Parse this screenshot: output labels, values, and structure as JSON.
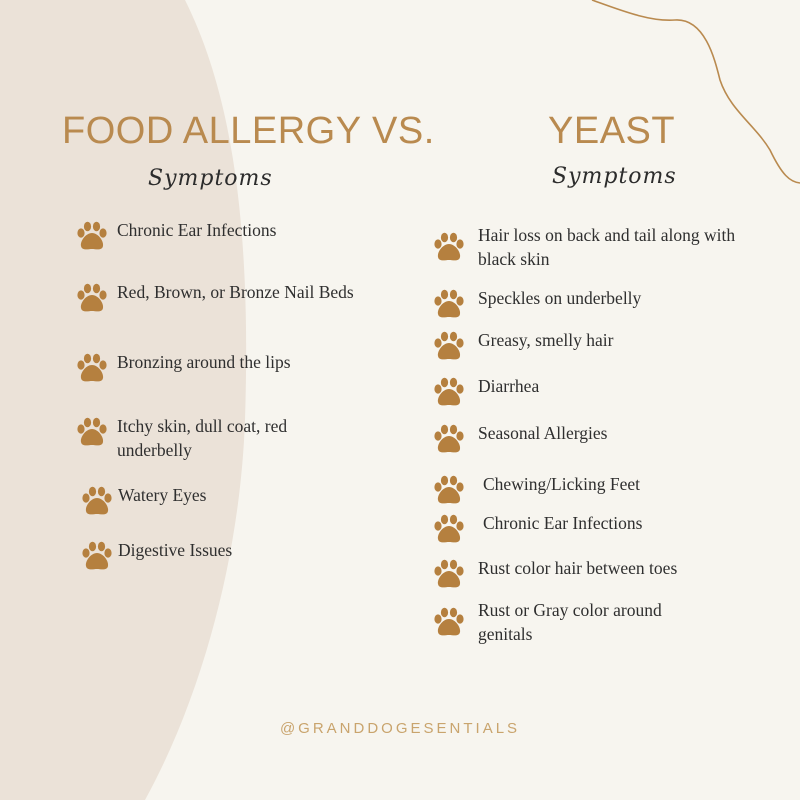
{
  "colors": {
    "background": "#f7f5ef",
    "left_shape": "#ebe2d8",
    "accent": "#b98a4f",
    "paw": "#b5803f",
    "text": "#2f2f2f",
    "footer": "#c9a46d"
  },
  "left": {
    "title": "FOOD ALLERGY",
    "subtitle": "Symptoms",
    "items": [
      {
        "text": "Chronic Ear Infections",
        "icon": "paw-icon"
      },
      {
        "text": "Red, Brown, or Bronze Nail Beds",
        "icon": "paw-icon"
      },
      {
        "text": "Bronzing around the lips",
        "icon": "paw-icon"
      },
      {
        "text": "Itchy skin, dull coat, red underbelly",
        "icon": "paw-icon"
      },
      {
        "text": "Watery Eyes",
        "icon": "paw-icon"
      },
      {
        "text": "Digestive Issues",
        "icon": "paw-icon"
      }
    ]
  },
  "vs_label": "VS.",
  "right": {
    "title": "YEAST",
    "subtitle": "Symptoms",
    "items": [
      {
        "text": "Hair loss on back and tail along with black skin",
        "icon": "paw-icon"
      },
      {
        "text": "Speckles on underbelly",
        "icon": "paw-icon"
      },
      {
        "text": "Greasy, smelly hair",
        "icon": "paw-icon"
      },
      {
        "text": "Diarrhea",
        "icon": "paw-icon"
      },
      {
        "text": "Seasonal Allergies",
        "icon": "paw-icon"
      },
      {
        "text": "Chewing/Licking Feet",
        "icon": "paw-icon"
      },
      {
        "text": "Chronic Ear Infections",
        "icon": "paw-icon"
      },
      {
        "text": "Rust color hair between toes",
        "icon": "paw-icon"
      },
      {
        "text": "Rust or Gray color around genitals",
        "icon": "paw-icon"
      }
    ]
  },
  "footer": "@GRANDDOGESENTIALS"
}
